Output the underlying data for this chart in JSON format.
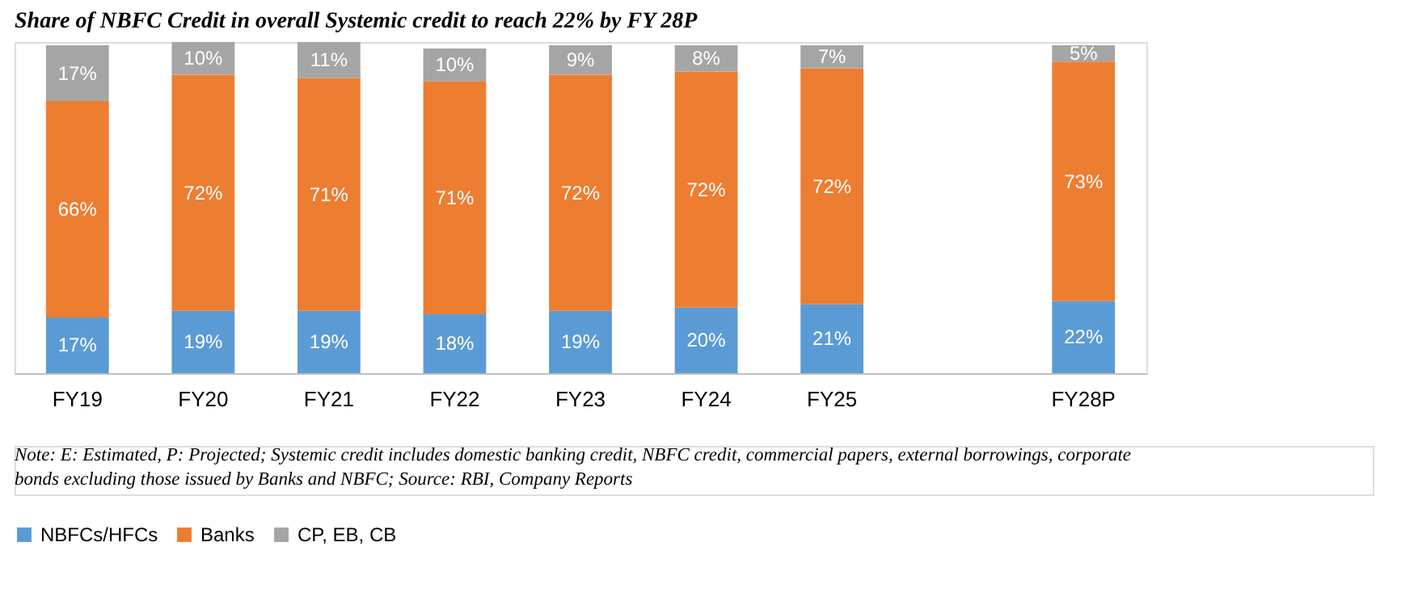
{
  "chart_data": {
    "type": "bar",
    "stacked": true,
    "title": "Share of NBFC Credit in overall Systemic credit to reach 22% by FY 28P",
    "categories": [
      "FY19",
      "FY20",
      "FY21",
      "FY22",
      "FY23",
      "FY24",
      "FY25",
      null,
      "FY28P"
    ],
    "series": [
      {
        "name": "NBFCs/HFCs",
        "color": "#5b9bd5",
        "values": [
          17,
          19,
          19,
          18,
          19,
          20,
          21,
          null,
          22
        ],
        "value_labels": [
          "17%",
          "19%",
          "19%",
          "18%",
          "19%",
          "20%",
          "21%",
          null,
          "22%"
        ]
      },
      {
        "name": "Banks",
        "color": "#ed7d31",
        "values": [
          66,
          72,
          71,
          71,
          72,
          72,
          72,
          null,
          73
        ],
        "value_labels": [
          "66%",
          "72%",
          "71%",
          "71%",
          "72%",
          "72%",
          "72%",
          null,
          "73%"
        ]
      },
      {
        "name": "CP, EB, CB",
        "color": "#a5a5a5",
        "values": [
          17,
          10,
          11,
          10,
          9,
          8,
          7,
          null,
          5
        ],
        "value_labels": [
          "17%",
          "10%",
          "11%",
          "10%",
          "9%",
          "8%",
          "7%",
          null,
          "5%"
        ]
      }
    ],
    "legend": "bottom",
    "grid": false,
    "annotations": [
      "Note: E: Estimated, P: Projected; Systemic credit includes domestic banking credit, NBFC credit, commercial papers, external borrowings, corporate bonds excluding those issued by Banks and NBFC; Source: RBI, Company Reports"
    ]
  }
}
